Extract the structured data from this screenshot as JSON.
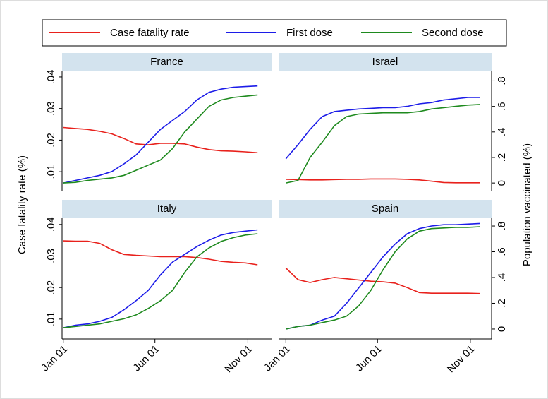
{
  "chart_data": [
    {
      "type": "line",
      "title": "France",
      "ylabel": "Case fatality rate (%)",
      "x": [
        0,
        20,
        40,
        60,
        80,
        100,
        120,
        140,
        160,
        180,
        200,
        220,
        240,
        260,
        280,
        300,
        320
      ],
      "xlim": [
        -2,
        343
      ],
      "ylim": [
        0.004,
        0.042
      ],
      "y2lim": [
        -0.06,
        0.88
      ],
      "yticks": [
        {
          "value": 0.01,
          "label": ".01"
        },
        {
          "value": 0.02,
          "label": ".02"
        },
        {
          "value": 0.03,
          "label": ".03"
        },
        {
          "value": 0.04,
          "label": ".04"
        }
      ],
      "series": [
        {
          "name": "Case fatality rate",
          "color": "#e8211c",
          "values": [
            0.024,
            0.0237,
            0.0234,
            0.0228,
            0.022,
            0.0205,
            0.0188,
            0.0185,
            0.019,
            0.019,
            0.0188,
            0.0178,
            0.017,
            0.0166,
            0.0165,
            0.0163,
            0.016
          ]
        },
        {
          "name": "First dose",
          "color": "#1c1ce8",
          "axis": "y2",
          "values": [
            0,
            0.02,
            0.04,
            0.06,
            0.09,
            0.15,
            0.22,
            0.32,
            0.42,
            0.49,
            0.56,
            0.65,
            0.71,
            0.735,
            0.75,
            0.755,
            0.76
          ]
        },
        {
          "name": "Second dose",
          "color": "#1e8a1e",
          "axis": "y2",
          "values": [
            0,
            0.005,
            0.02,
            0.03,
            0.04,
            0.06,
            0.1,
            0.14,
            0.18,
            0.27,
            0.4,
            0.5,
            0.6,
            0.65,
            0.67,
            0.68,
            0.69
          ]
        }
      ]
    },
    {
      "type": "line",
      "title": "Israel",
      "y2label": "Population vaccinated (%)",
      "x": [
        0,
        20,
        40,
        60,
        80,
        100,
        120,
        140,
        160,
        180,
        200,
        220,
        240,
        260,
        280,
        300,
        320
      ],
      "xlim": [
        -12,
        339
      ],
      "ylim": [
        0.004,
        0.042
      ],
      "y2lim": [
        -0.06,
        0.88
      ],
      "y2ticks": [
        0,
        {
          "value": 0.2,
          "label": ".2"
        },
        {
          "value": 0.4,
          "label": ".4"
        },
        {
          "value": 0.6,
          "label": ".6"
        },
        {
          "value": 0.8,
          "label": ".8"
        }
      ],
      "series": [
        {
          "name": "Case fatality rate",
          "color": "#e8211c",
          "values": [
            0.0076,
            0.0075,
            0.0074,
            0.0074,
            0.0075,
            0.0076,
            0.0076,
            0.0077,
            0.0077,
            0.0077,
            0.0076,
            0.0074,
            0.007,
            0.0066,
            0.0065,
            0.0065,
            0.0065
          ]
        },
        {
          "name": "First dose",
          "color": "#1c1ce8",
          "axis": "y2",
          "values": [
            0.19,
            0.3,
            0.42,
            0.52,
            0.56,
            0.57,
            0.58,
            0.585,
            0.59,
            0.59,
            0.6,
            0.62,
            0.63,
            0.65,
            0.66,
            0.67,
            0.67
          ]
        },
        {
          "name": "Second dose",
          "color": "#1e8a1e",
          "axis": "y2",
          "values": [
            0,
            0.02,
            0.2,
            0.32,
            0.45,
            0.52,
            0.54,
            0.545,
            0.55,
            0.55,
            0.55,
            0.56,
            0.58,
            0.59,
            0.6,
            0.61,
            0.615
          ]
        }
      ]
    },
    {
      "type": "line",
      "title": "Italy",
      "x": [
        0,
        20,
        40,
        60,
        80,
        100,
        120,
        140,
        160,
        180,
        200,
        220,
        240,
        260,
        280,
        300,
        320
      ],
      "xlim": [
        -2,
        343
      ],
      "ylim": [
        0.0037,
        0.0422
      ],
      "y2lim": [
        -0.077,
        0.866
      ],
      "xticks": [
        {
          "value": 0,
          "label": "Jan 01"
        },
        {
          "value": 151,
          "label": "Jun 01"
        },
        {
          "value": 304,
          "label": "Nov 01"
        }
      ],
      "yticks": [
        {
          "value": 0.01,
          "label": ".01"
        },
        {
          "value": 0.02,
          "label": ".02"
        },
        {
          "value": 0.03,
          "label": ".03"
        },
        {
          "value": 0.04,
          "label": ".04"
        }
      ],
      "series": [
        {
          "name": "Case fatality rate",
          "color": "#e8211c",
          "values": [
            0.0348,
            0.0347,
            0.0347,
            0.034,
            0.032,
            0.0305,
            0.0302,
            0.03,
            0.0298,
            0.0298,
            0.0298,
            0.0295,
            0.029,
            0.0283,
            0.028,
            0.0278,
            0.0272
          ]
        },
        {
          "name": "First dose",
          "color": "#1c1ce8",
          "axis": "y2",
          "values": [
            0.01,
            0.03,
            0.04,
            0.06,
            0.09,
            0.15,
            0.22,
            0.3,
            0.42,
            0.52,
            0.58,
            0.64,
            0.69,
            0.73,
            0.75,
            0.76,
            0.77
          ]
        },
        {
          "name": "Second dose",
          "color": "#1e8a1e",
          "axis": "y2",
          "values": [
            0.01,
            0.02,
            0.03,
            0.04,
            0.06,
            0.08,
            0.11,
            0.16,
            0.22,
            0.3,
            0.44,
            0.56,
            0.63,
            0.68,
            0.71,
            0.73,
            0.74
          ]
        }
      ]
    },
    {
      "type": "line",
      "title": "Spain",
      "x": [
        0,
        20,
        40,
        60,
        80,
        100,
        120,
        140,
        160,
        180,
        200,
        220,
        240,
        260,
        280,
        300,
        320
      ],
      "xlim": [
        -12,
        339
      ],
      "ylim": [
        0.0037,
        0.0422
      ],
      "y2lim": [
        -0.077,
        0.866
      ],
      "xticks": [
        {
          "value": 0,
          "label": "Jan 01"
        },
        {
          "value": 151,
          "label": "Jun 01"
        },
        {
          "value": 304,
          "label": "Nov 01"
        }
      ],
      "y2ticks": [
        0,
        {
          "value": 0.2,
          "label": ".2"
        },
        {
          "value": 0.4,
          "label": ".4"
        },
        {
          "value": 0.6,
          "label": ".6"
        },
        {
          "value": 0.8,
          "label": ".8"
        }
      ],
      "series": [
        {
          "name": "Case fatality rate",
          "color": "#e8211c",
          "values": [
            0.0262,
            0.0225,
            0.0216,
            0.0225,
            0.0232,
            0.0228,
            0.0224,
            0.022,
            0.0218,
            0.0214,
            0.02,
            0.0184,
            0.0182,
            0.0182,
            0.0182,
            0.0182,
            0.0181
          ]
        },
        {
          "name": "First dose",
          "color": "#1c1ce8",
          "axis": "y2",
          "values": [
            0,
            0.02,
            0.03,
            0.07,
            0.1,
            0.2,
            0.32,
            0.44,
            0.56,
            0.66,
            0.74,
            0.78,
            0.8,
            0.81,
            0.81,
            0.815,
            0.82
          ]
        },
        {
          "name": "Second dose",
          "color": "#1e8a1e",
          "axis": "y2",
          "values": [
            0,
            0.02,
            0.03,
            0.05,
            0.07,
            0.1,
            0.18,
            0.3,
            0.46,
            0.6,
            0.7,
            0.76,
            0.78,
            0.785,
            0.79,
            0.79,
            0.795
          ]
        }
      ]
    }
  ]
}
